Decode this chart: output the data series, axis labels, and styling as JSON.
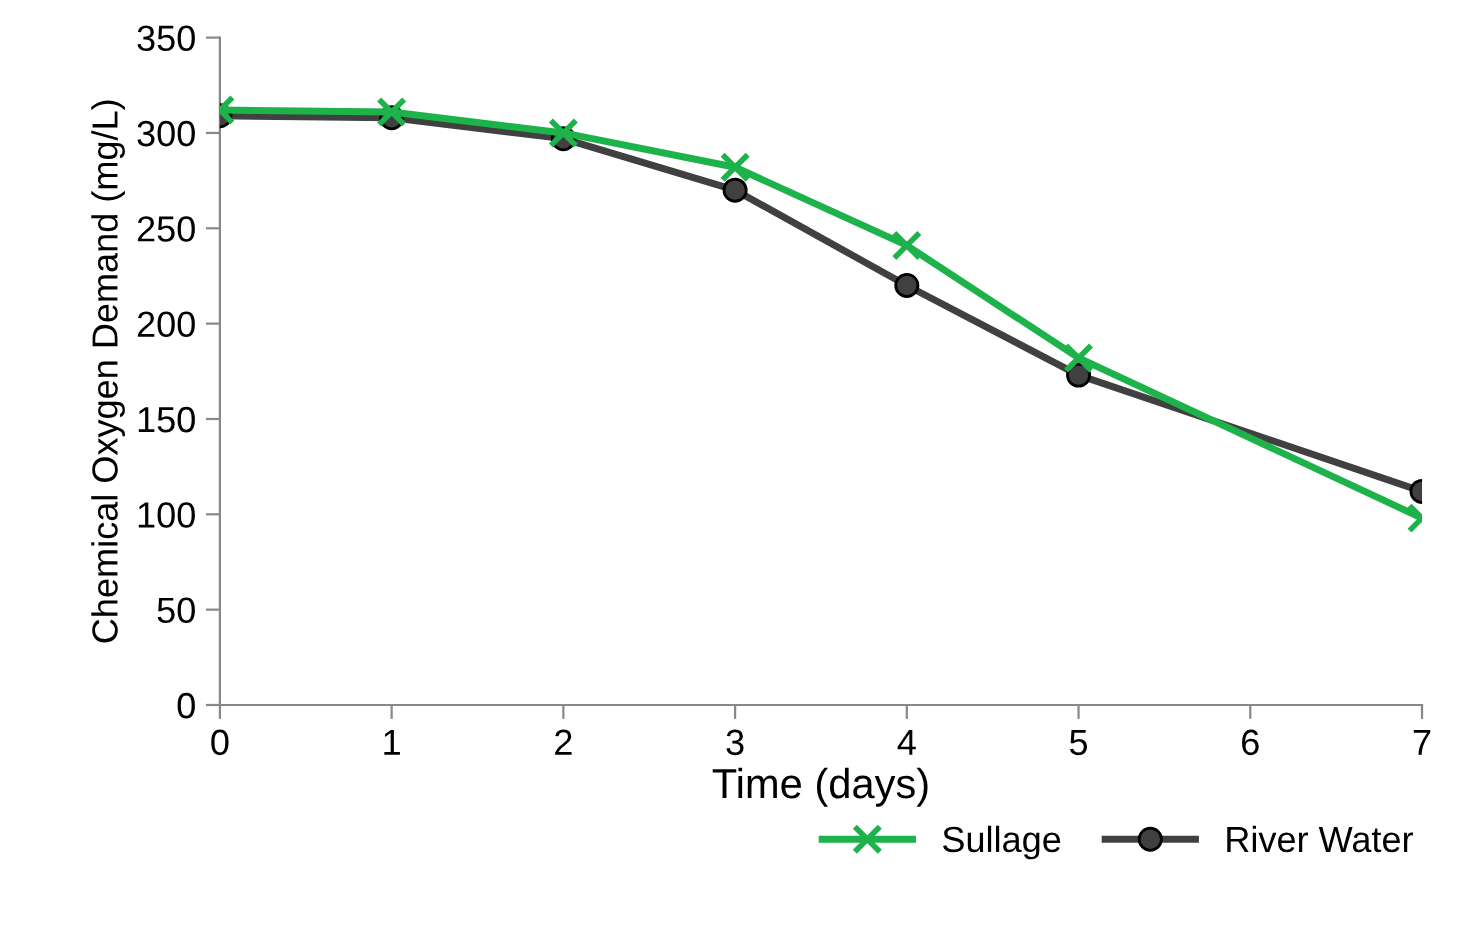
{
  "chart_data": {
    "type": "line",
    "xlabel": "Time (days)",
    "ylabel": "Chemical Oxygen Demand (mg/L)",
    "xlim": [
      0,
      7
    ],
    "xticks": [
      0,
      1,
      2,
      3,
      4,
      5,
      6,
      7
    ],
    "ylim": [
      0,
      350
    ],
    "yticks": [
      0,
      50,
      100,
      150,
      200,
      250,
      300,
      350
    ],
    "grid": false,
    "legend": "bottom right",
    "series": [
      {
        "name": "Sullage",
        "color": "#1db34a",
        "marker": "cross",
        "x": [
          0,
          1,
          2,
          3,
          4,
          5,
          7
        ],
        "values": [
          312,
          311,
          300,
          282,
          241,
          182,
          98
        ]
      },
      {
        "name": "River Water",
        "color": "#404040",
        "marker": "circle",
        "x": [
          0,
          1,
          2,
          3,
          4,
          5,
          7
        ],
        "values": [
          309,
          308,
          297,
          270,
          220,
          173,
          112
        ]
      }
    ]
  }
}
